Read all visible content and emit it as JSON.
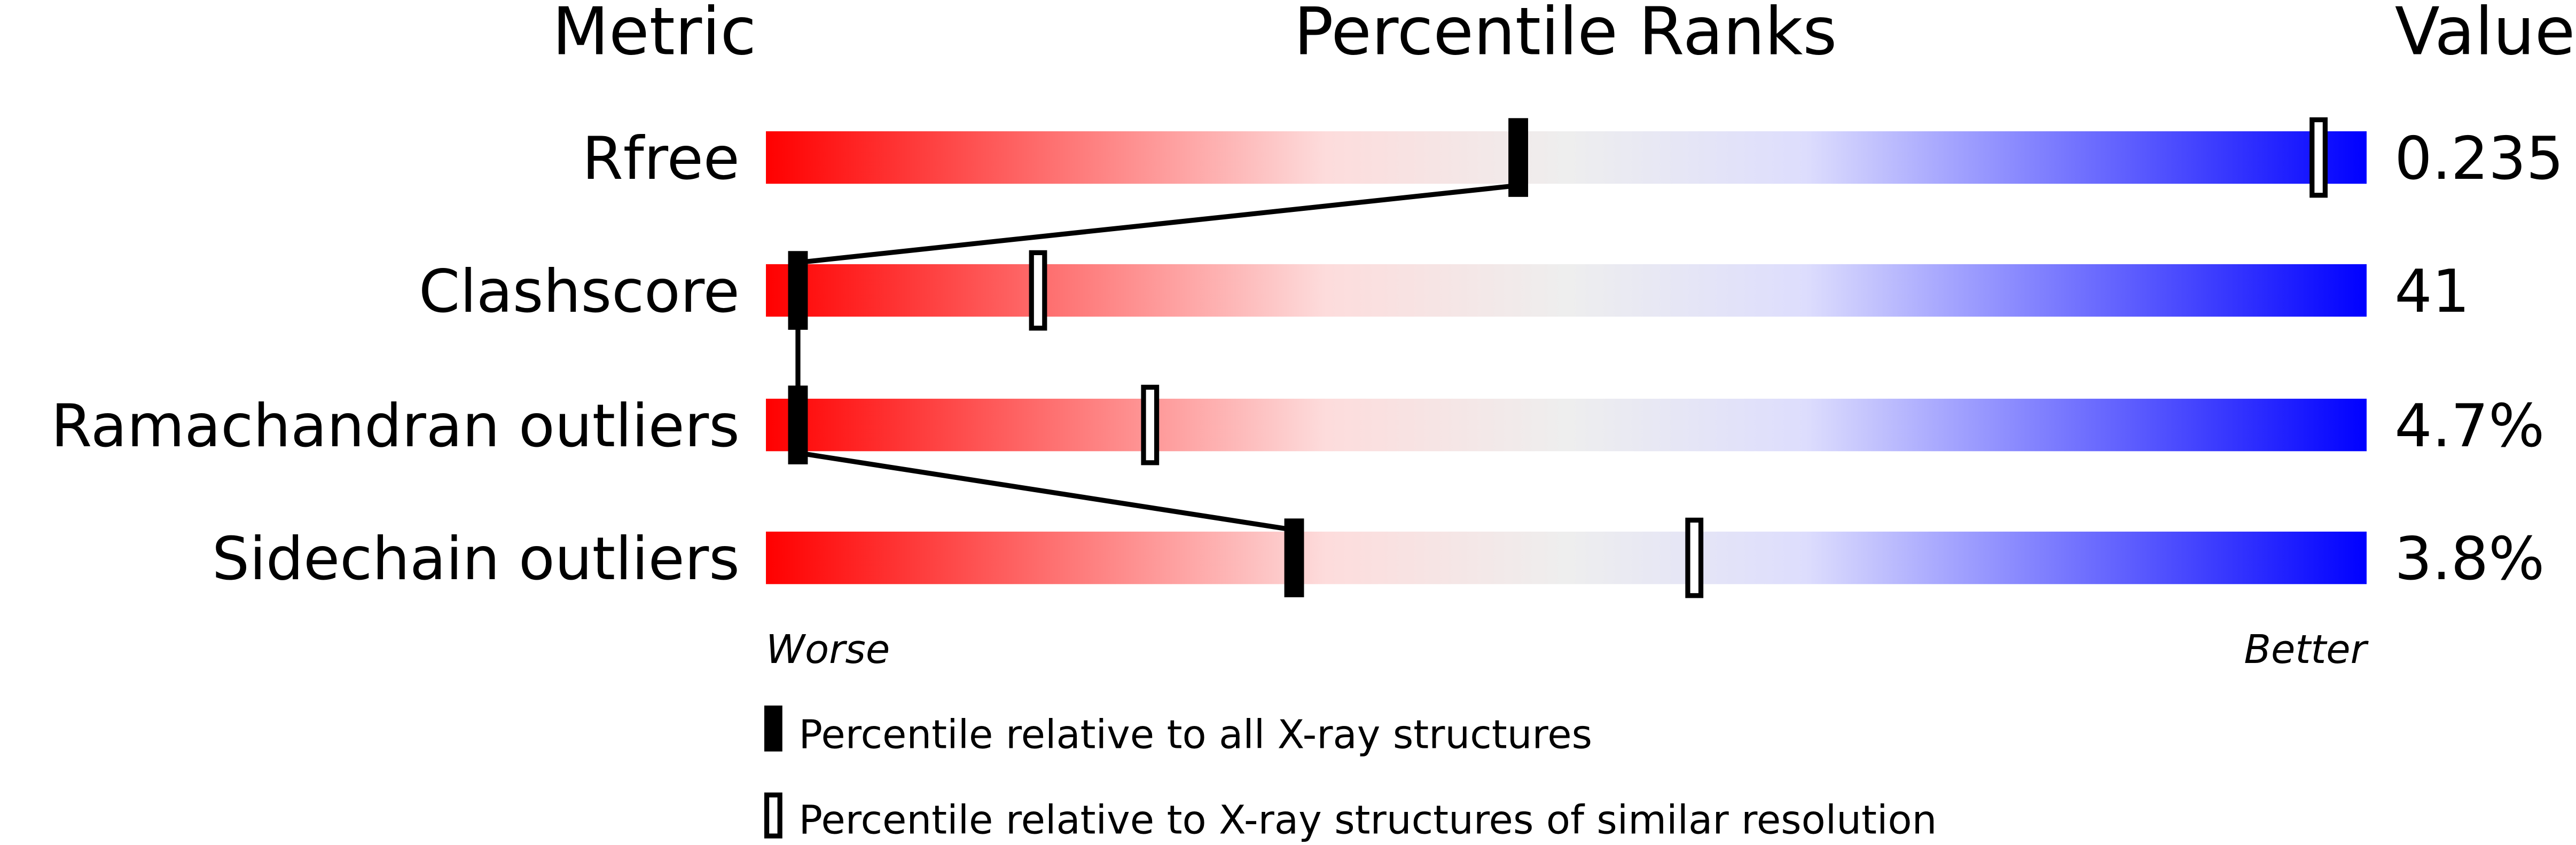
{
  "chart_data": {
    "type": "percentile-bars",
    "headers": {
      "metric": "Metric",
      "ranks": "Percentile Ranks",
      "value": "Value"
    },
    "rows": [
      {
        "metric": "Rfree",
        "value": "0.235",
        "percentile_all": 47,
        "percentile_similar": 97
      },
      {
        "metric": "Clashscore",
        "value": "41",
        "percentile_all": 2,
        "percentile_similar": 17
      },
      {
        "metric": "Ramachandran outliers",
        "value": "4.7%",
        "percentile_all": 2,
        "percentile_similar": 24
      },
      {
        "metric": "Sidechain outliers",
        "value": "3.8%",
        "percentile_all": 33,
        "percentile_similar": 58
      }
    ],
    "xlim": [
      0,
      100
    ],
    "axis_labels": {
      "left": "Worse",
      "right": "Better"
    },
    "legend": {
      "filled": "Percentile relative to all X-ray structures",
      "open": "Percentile relative to X-ray structures of similar resolution"
    },
    "colors": {
      "worse": "#ff0000",
      "mid": "#eeeeee",
      "better": "#0000ff"
    }
  }
}
